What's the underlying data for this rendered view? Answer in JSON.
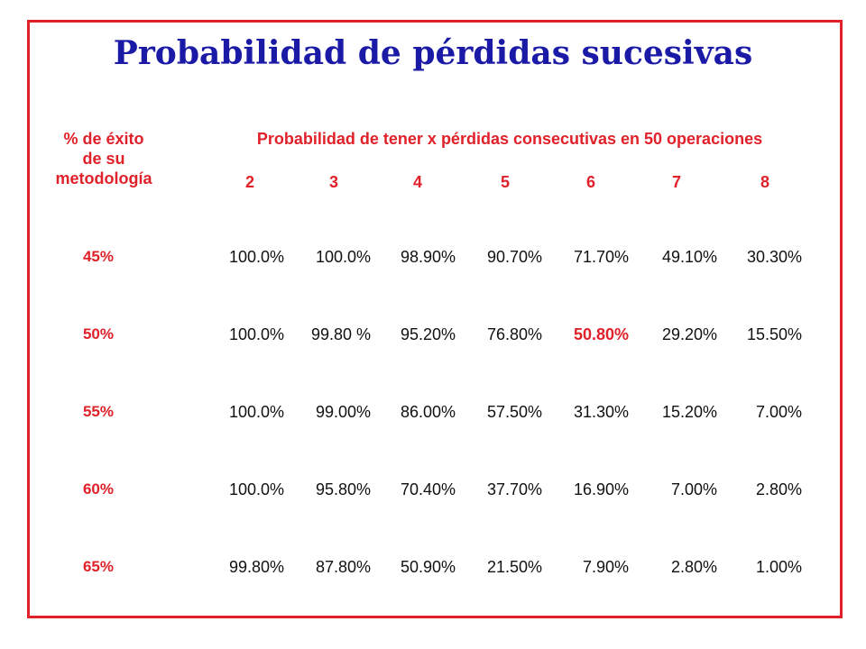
{
  "title": "Probabilidad de pérdidas sucesivas",
  "header": {
    "row_label_line1": "% de éxito",
    "row_label_line2": "de su",
    "row_label_line3": "metodología",
    "span_label": "Probabilidad de tener x pérdidas consecutivas en 50 operaciones",
    "columns": [
      "2",
      "3",
      "4",
      "5",
      "6",
      "7",
      "8"
    ]
  },
  "rows": [
    {
      "label": "45%",
      "values": [
        "100.0%",
        "100.0%",
        "98.90%",
        "90.70%",
        "71.70%",
        "49.10%",
        "30.30%"
      ]
    },
    {
      "label": "50%",
      "values": [
        "100.0%",
        "99.80 %",
        "95.20%",
        "76.80%",
        "50.80%",
        "29.20%",
        "15.50%"
      ]
    },
    {
      "label": "55%",
      "values": [
        "100.0%",
        "99.00%",
        "86.00%",
        "57.50%",
        "31.30%",
        "15.20%",
        "7.00%"
      ]
    },
    {
      "label": "60%",
      "values": [
        "100.0%",
        "95.80%",
        "70.40%",
        "37.70%",
        "16.90%",
        "7.00%",
        "2.80%"
      ]
    },
    {
      "label": "65%",
      "values": [
        "99.80%",
        "87.80%",
        "50.90%",
        "21.50%",
        "7.90%",
        "2.80%",
        "1.00%"
      ]
    }
  ],
  "highlight": {
    "row": 1,
    "col": 4,
    "color": "#e0212a"
  },
  "colors": {
    "border": "#e0212a",
    "title": "#1a1aa6",
    "header": "#e0212a",
    "text": "#111111"
  }
}
